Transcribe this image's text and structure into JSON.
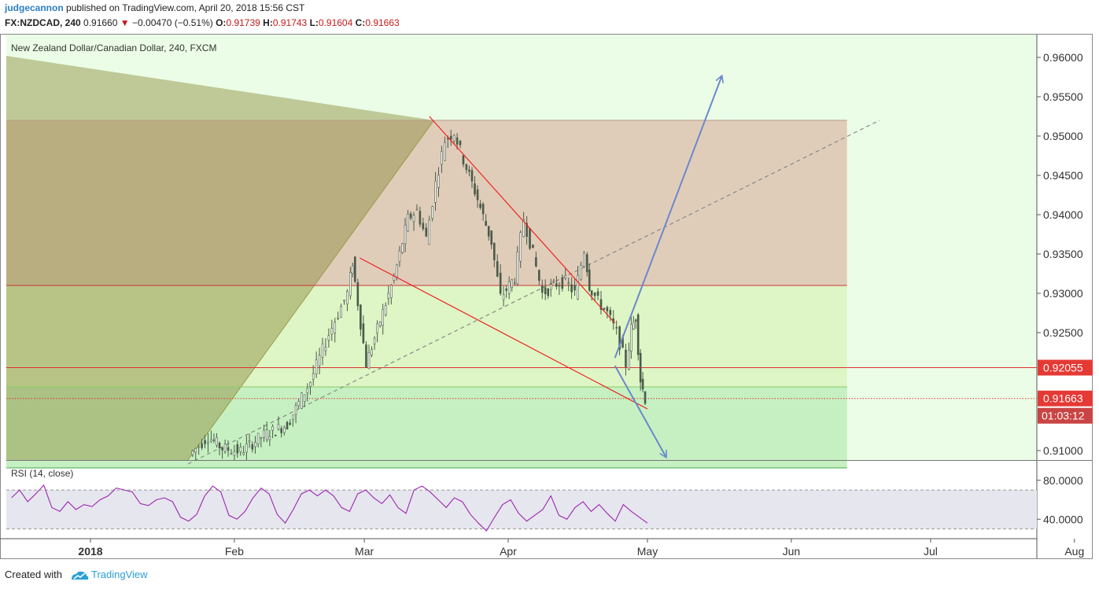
{
  "header": {
    "user": "judgecannon",
    "published": "published on TradingView.com, April 20, 2018 15:56 CST",
    "symbol": "FX:NZDCAD, 240",
    "last": "0.91660",
    "change_arrow": "▼",
    "change": "−0.00470 (−0.51%)",
    "o_label": "O:",
    "o": "0.91739",
    "h_label": "H:",
    "h": "0.91743",
    "l_label": "L:",
    "l": "0.91604",
    "c_label": "C:",
    "c": "0.91663"
  },
  "footer": {
    "created_with": "Created with",
    "brand": "TradingView"
  },
  "colors": {
    "background": "#ebfde6",
    "rsi_band": "#e6e6ee",
    "rsi_line": "#9c27b0",
    "candle": "#4a5a4a",
    "trend_red": "#ee2222",
    "arrow_blue": "#6a89cc",
    "fan": "#8a8a3a",
    "rect_upper": "#e0cdb9",
    "rect_lower": "#c6f0c1",
    "price_tag_red": "#e53935",
    "countdown_tag": "#c94444"
  },
  "chart_data": {
    "type": "candlestick",
    "title": "New Zealand Dollar/Canadian Dollar, 240, FXCM",
    "xlabel": "",
    "ylabel": "",
    "x_ticks": [
      "2018",
      "Feb",
      "Mar",
      "Apr",
      "May",
      "Jun",
      "Jul",
      "Aug"
    ],
    "y_ticks": [
      "0.91000",
      "0.92500",
      "0.93000",
      "0.93500",
      "0.94000",
      "0.94500",
      "0.95000",
      "0.95500",
      "0.96000"
    ],
    "ylim": [
      0.9088,
      0.963
    ],
    "grid": false,
    "price_path": [
      [
        "2018-01-23",
        0.9095
      ],
      [
        "2018-01-27",
        0.9118
      ],
      [
        "2018-01-30",
        0.9103
      ],
      [
        "2018-02-03",
        0.9099
      ],
      [
        "2018-02-08",
        0.912
      ],
      [
        "2018-02-13",
        0.9133
      ],
      [
        "2018-02-18",
        0.9188
      ],
      [
        "2018-02-22",
        0.9248
      ],
      [
        "2018-02-26",
        0.93
      ],
      [
        "2018-02-27",
        0.934
      ],
      [
        "2018-03-02",
        0.921
      ],
      [
        "2018-03-05",
        0.9265
      ],
      [
        "2018-03-08",
        0.932
      ],
      [
        "2018-03-11",
        0.9395
      ],
      [
        "2018-03-13",
        0.9405
      ],
      [
        "2018-03-15",
        0.937
      ],
      [
        "2018-03-17",
        0.944
      ],
      [
        "2018-03-19",
        0.9495
      ],
      [
        "2018-03-21",
        0.9505
      ],
      [
        "2018-03-23",
        0.947
      ],
      [
        "2018-03-26",
        0.942
      ],
      [
        "2018-03-29",
        0.9365
      ],
      [
        "2018-03-31",
        0.9295
      ],
      [
        "2018-04-03",
        0.932
      ],
      [
        "2018-04-05",
        0.9395
      ],
      [
        "2018-04-07",
        0.935
      ],
      [
        "2018-04-09",
        0.93
      ],
      [
        "2018-04-12",
        0.9312
      ],
      [
        "2018-04-14",
        0.9315
      ],
      [
        "2018-04-16",
        0.93
      ],
      [
        "2018-04-18",
        0.9355
      ],
      [
        "2018-04-19",
        0.931
      ],
      [
        "2018-04-21",
        0.929
      ],
      [
        "2018-04-23",
        0.9275
      ],
      [
        "2018-04-25",
        0.925
      ],
      [
        "2018-04-27",
        0.921
      ],
      [
        "2018-04-28",
        0.9255
      ],
      [
        "2018-04-29",
        0.927
      ],
      [
        "2018-04-30",
        0.919
      ],
      [
        "2018-05-01",
        0.9166
      ]
    ],
    "series": [
      {
        "name": "RSI (14, close)",
        "ylim": [
          20,
          100
        ],
        "levels": [
          70,
          30
        ],
        "labels": [
          "80.0000",
          "40.0000"
        ],
        "values": [
          62,
          70,
          58,
          66,
          75,
          52,
          48,
          58,
          50,
          55,
          53,
          60,
          64,
          72,
          70,
          68,
          56,
          54,
          60,
          62,
          58,
          42,
          38,
          45,
          64,
          74,
          68,
          44,
          40,
          48,
          62,
          72,
          66,
          45,
          36,
          50,
          66,
          70,
          64,
          70,
          64,
          52,
          48,
          66,
          70,
          62,
          56,
          65,
          52,
          46,
          70,
          74,
          68,
          60,
          52,
          62,
          58,
          45,
          36,
          28,
          42,
          55,
          60,
          46,
          38,
          44,
          50,
          64,
          44,
          40,
          52,
          58,
          48,
          55,
          46,
          38,
          55,
          48,
          42,
          36
        ]
      }
    ],
    "x_index_dates": [
      "2017-12-15",
      "2018-08-06"
    ],
    "price_labels": [
      {
        "value": 0.92055,
        "label": "0.92055"
      },
      {
        "value": 0.91663,
        "label": "0.91663"
      },
      {
        "label": "01:03:12"
      }
    ],
    "levels": [
      0.952,
      0.931,
      0.92055,
      0.9181,
      0.91663,
      0.9078
    ],
    "drawings": {
      "upper_trend": [
        [
          0.9525,
          "2018-03-15"
        ],
        [
          0.9262,
          "2018-04-24"
        ]
      ],
      "lower_trend": [
        [
          0.9345,
          "2018-02-28"
        ],
        [
          0.9153,
          "2018-05-01"
        ]
      ],
      "dashed_trend": [
        [
          0.9083,
          "2018-01-22"
        ],
        [
          0.952,
          "2018-06-20"
        ]
      ],
      "arrow_up": [
        [
          0.9218,
          "2018-04-24"
        ],
        [
          0.9576,
          "2018-05-17"
        ]
      ],
      "arrow_down": [
        [
          0.9208,
          "2018-04-24"
        ],
        [
          0.9092,
          "2018-05-05"
        ]
      ]
    }
  }
}
